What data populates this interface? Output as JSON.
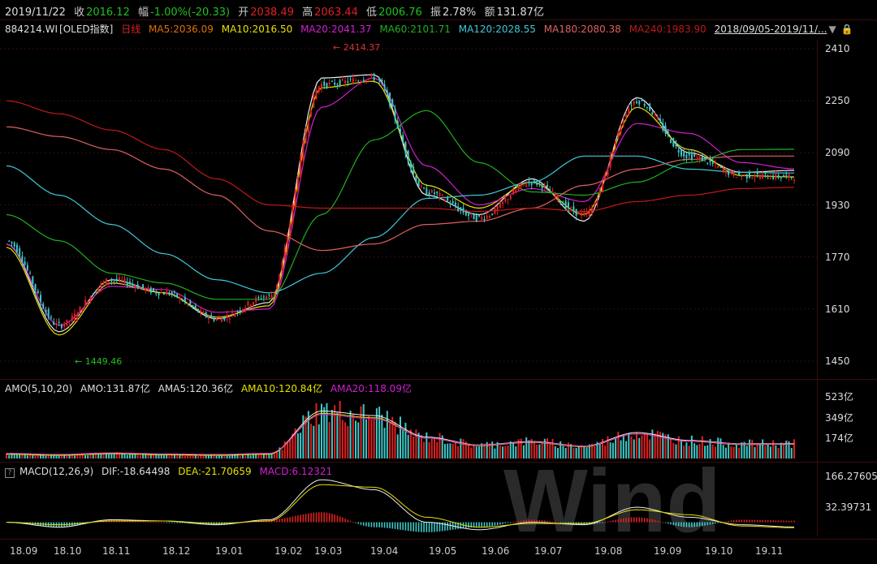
{
  "quote": {
    "date": "2019/11/22",
    "close_label": "收",
    "close": "2016.12",
    "chg_label": "幅",
    "chg": "-1.00%(-20.33)",
    "open_label": "开",
    "open": "2038.49",
    "high_label": "高",
    "high": "2063.44",
    "low_label": "低",
    "low": "2006.76",
    "amp_label": "振",
    "amp": "2.78%",
    "amt_label": "额",
    "amt": "131.87亿"
  },
  "ma": {
    "code": "884214.WI",
    "name": "[OLED指数]",
    "period": "日线",
    "ma5": "MA5:2036.09",
    "ma10": "MA10:2016.50",
    "ma20": "MA20:2041.37",
    "ma60": "MA60:2101.71",
    "ma120": "MA120:2028.55",
    "ma180": "MA180:2080.38",
    "ma240": "MA240:1983.90",
    "range": "2018/09/05-2019/11/..."
  },
  "colors": {
    "up": "#e02020",
    "down": "#3ec8c8",
    "ma5": "#f0f0f0",
    "ma10": "#e8e000",
    "ma20": "#d020d0",
    "ma60": "#20b020",
    "ma120": "#40c8d8",
    "ma180": "#e06060",
    "ma240": "#c01818"
  },
  "amo": {
    "label": "AMO(5,10,20)",
    "amo": "AMO:131.87亿",
    "ama5": "AMA5:120.36亿",
    "ama10": "AMA10:120.84亿",
    "ama20": "AMA20:118.09亿",
    "ticks": [
      "523亿",
      "349亿",
      "174亿"
    ]
  },
  "macd": {
    "icon": "?",
    "label": "MACD(12,26,9)",
    "dif": "DIF:-18.64498",
    "dea": "DEA:-21.70659",
    "macd": "MACD:6.12321",
    "ticks": [
      "166.27605",
      "32.39731"
    ]
  },
  "watermark": "Wind",
  "chart_data": {
    "type": "line",
    "price_ticks": [
      2410,
      2250,
      2090,
      1930,
      1770,
      1610,
      1450
    ],
    "ylim": [
      1420,
      2440
    ],
    "x_ticks": [
      "18.09",
      "18.10",
      "18.11",
      "18.12",
      "19.01",
      "19.02",
      "19.03",
      "19.04",
      "19.05",
      "19.06",
      "19.07",
      "19.08",
      "19.09",
      "19.10",
      "19.11"
    ],
    "annotations": [
      {
        "text": "2414.37",
        "value": 2414.37
      },
      {
        "text": "1449.46",
        "value": 1449.46
      }
    ],
    "close_series": {
      "name": "close",
      "x": [
        "18.09",
        "18.10",
        "18.11",
        "18.12",
        "19.01",
        "19.02",
        "19.03",
        "19.04",
        "19.05",
        "19.06",
        "19.07",
        "19.08",
        "19.09",
        "19.10",
        "19.11",
        "19.11e"
      ],
      "values": [
        1820,
        1560,
        1700,
        1660,
        1580,
        1650,
        2300,
        2320,
        1970,
        1890,
        2000,
        1900,
        2250,
        2080,
        2020,
        2016
      ]
    },
    "series": [
      {
        "name": "MA5",
        "values": [
          1810,
          1540,
          1700,
          1660,
          1580,
          1630,
          2320,
          2330,
          1960,
          1900,
          2010,
          1880,
          2260,
          2090,
          2030,
          2036
        ]
      },
      {
        "name": "MA10",
        "values": [
          1800,
          1530,
          1690,
          1660,
          1585,
          1620,
          2290,
          2310,
          1990,
          1920,
          2000,
          1900,
          2230,
          2100,
          2020,
          2016
        ]
      },
      {
        "name": "MA20",
        "values": [
          1810,
          1560,
          1680,
          1670,
          1600,
          1610,
          2230,
          2320,
          2050,
          1930,
          1980,
          1940,
          2180,
          2150,
          2060,
          2041
        ]
      },
      {
        "name": "MA60",
        "values": [
          1900,
          1820,
          1720,
          1690,
          1640,
          1640,
          1900,
          2130,
          2220,
          2060,
          1970,
          1960,
          2000,
          2060,
          2100,
          2101
        ]
      },
      {
        "name": "MA120",
        "values": [
          2050,
          1960,
          1870,
          1780,
          1700,
          1660,
          1720,
          1830,
          1950,
          1960,
          2000,
          2080,
          2080,
          2040,
          2030,
          2028
        ]
      },
      {
        "name": "MA180",
        "values": [
          2170,
          2140,
          2100,
          2040,
          1960,
          1850,
          1790,
          1810,
          1870,
          1880,
          1920,
          1990,
          2040,
          2070,
          2080,
          2080
        ]
      },
      {
        "name": "MA240",
        "values": [
          2250,
          2210,
          2160,
          2100,
          2010,
          1930,
          1920,
          1920,
          1920,
          1910,
          1920,
          1910,
          1940,
          1960,
          1980,
          1984
        ]
      }
    ],
    "amo_series": {
      "name": "AMO",
      "ylim": [
        0,
        560
      ],
      "values": [
        40,
        30,
        45,
        35,
        30,
        40,
        420,
        380,
        190,
        120,
        150,
        110,
        230,
        160,
        130,
        132
      ]
    },
    "macd_series": {
      "ylim": [
        -60,
        190
      ],
      "dif": [
        0,
        -20,
        10,
        5,
        -10,
        10,
        170,
        130,
        0,
        -30,
        0,
        -10,
        60,
        20,
        -10,
        -19
      ],
      "dea": [
        0,
        -10,
        5,
        5,
        -5,
        5,
        150,
        140,
        20,
        -20,
        -5,
        -5,
        50,
        30,
        -15,
        -22
      ]
    }
  }
}
